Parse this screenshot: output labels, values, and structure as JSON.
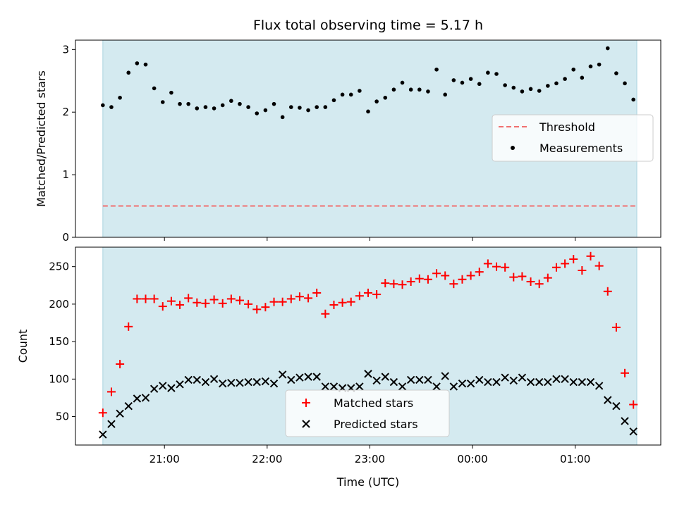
{
  "chart_data": [
    {
      "type": "scatter",
      "title": "Flux total observing time = 5.17 h",
      "xlabel": "",
      "ylabel": "Matched/Predicted stars",
      "ylim": [
        0,
        3.15
      ],
      "yticks": [
        0,
        1,
        2,
        3
      ],
      "shaded_region": {
        "x_start": "20:24",
        "x_end": "01:36",
        "color": "#d4eaf0"
      },
      "threshold": {
        "name": "Threshold",
        "value": 0.5,
        "color": "#f07070",
        "style": "dashed"
      },
      "series": [
        {
          "name": "Measurements",
          "marker": "dot",
          "color": "#000000",
          "points": [
            [
              "20:24",
              2.11
            ],
            [
              "20:29",
              2.08
            ],
            [
              "20:34",
              2.23
            ],
            [
              "20:39",
              2.63
            ],
            [
              "20:44",
              2.78
            ],
            [
              "20:49",
              2.76
            ],
            [
              "20:54",
              2.38
            ],
            [
              "20:59",
              2.16
            ],
            [
              "21:04",
              2.31
            ],
            [
              "21:09",
              2.13
            ],
            [
              "21:14",
              2.13
            ],
            [
              "21:19",
              2.06
            ],
            [
              "21:24",
              2.08
            ],
            [
              "21:29",
              2.06
            ],
            [
              "21:34",
              2.11
            ],
            [
              "21:39",
              2.18
            ],
            [
              "21:44",
              2.13
            ],
            [
              "21:49",
              2.08
            ],
            [
              "21:54",
              1.98
            ],
            [
              "21:59",
              2.03
            ],
            [
              "22:04",
              2.13
            ],
            [
              "22:09",
              1.92
            ],
            [
              "22:14",
              2.08
            ],
            [
              "22:19",
              2.07
            ],
            [
              "22:24",
              2.03
            ],
            [
              "22:29",
              2.08
            ],
            [
              "22:34",
              2.08
            ],
            [
              "22:39",
              2.19
            ],
            [
              "22:44",
              2.28
            ],
            [
              "22:49",
              2.28
            ],
            [
              "22:54",
              2.34
            ],
            [
              "22:59",
              2.01
            ],
            [
              "23:04",
              2.17
            ],
            [
              "23:09",
              2.23
            ],
            [
              "23:14",
              2.36
            ],
            [
              "23:19",
              2.47
            ],
            [
              "23:24",
              2.36
            ],
            [
              "23:29",
              2.36
            ],
            [
              "23:34",
              2.33
            ],
            [
              "23:39",
              2.68
            ],
            [
              "23:44",
              2.28
            ],
            [
              "23:49",
              2.51
            ],
            [
              "23:54",
              2.47
            ],
            [
              "23:59",
              2.53
            ],
            [
              "00:04",
              2.45
            ],
            [
              "00:09",
              2.63
            ],
            [
              "00:14",
              2.61
            ],
            [
              "00:19",
              2.43
            ],
            [
              "00:24",
              2.39
            ],
            [
              "00:29",
              2.33
            ],
            [
              "00:34",
              2.37
            ],
            [
              "00:39",
              2.34
            ],
            [
              "00:44",
              2.42
            ],
            [
              "00:49",
              2.46
            ],
            [
              "00:54",
              2.53
            ],
            [
              "00:59",
              2.68
            ],
            [
              "01:04",
              2.55
            ],
            [
              "01:09",
              2.73
            ],
            [
              "01:14",
              2.76
            ],
            [
              "01:19",
              3.02
            ],
            [
              "01:24",
              2.62
            ],
            [
              "01:29",
              2.46
            ],
            [
              "01:34",
              2.2
            ]
          ]
        }
      ],
      "legend_position": "center-right"
    },
    {
      "type": "scatter",
      "title": "",
      "xlabel": "Time (UTC)",
      "ylabel": "Count",
      "ylim": [
        12,
        276
      ],
      "yticks": [
        50,
        100,
        150,
        200,
        250
      ],
      "xlim": [
        "20:08",
        "01:50"
      ],
      "xticks": [
        "21:00",
        "22:00",
        "23:00",
        "00:00",
        "01:00"
      ],
      "shaded_region": {
        "x_start": "20:24",
        "x_end": "01:36",
        "color": "#d4eaf0"
      },
      "series": [
        {
          "name": "Matched stars",
          "marker": "plus",
          "color": "#ff0000",
          "points": [
            [
              "20:24",
              55
            ],
            [
              "20:29",
              83
            ],
            [
              "20:34",
              120
            ],
            [
              "20:39",
              170
            ],
            [
              "20:44",
              207
            ],
            [
              "20:49",
              207
            ],
            [
              "20:54",
              207
            ],
            [
              "20:59",
              197
            ],
            [
              "21:04",
              204
            ],
            [
              "21:09",
              199
            ],
            [
              "21:14",
              208
            ],
            [
              "21:19",
              202
            ],
            [
              "21:24",
              201
            ],
            [
              "21:29",
              206
            ],
            [
              "21:34",
              201
            ],
            [
              "21:39",
              207
            ],
            [
              "21:44",
              205
            ],
            [
              "21:49",
              200
            ],
            [
              "21:54",
              193
            ],
            [
              "21:59",
              196
            ],
            [
              "22:04",
              203
            ],
            [
              "22:09",
              203
            ],
            [
              "22:14",
              207
            ],
            [
              "22:19",
              210
            ],
            [
              "22:24",
              208
            ],
            [
              "22:29",
              215
            ],
            [
              "22:34",
              187
            ],
            [
              "22:39",
              199
            ],
            [
              "22:44",
              202
            ],
            [
              "22:49",
              203
            ],
            [
              "22:54",
              211
            ],
            [
              "22:59",
              215
            ],
            [
              "23:04",
              213
            ],
            [
              "23:09",
              228
            ],
            [
              "23:14",
              227
            ],
            [
              "23:19",
              226
            ],
            [
              "23:24",
              230
            ],
            [
              "23:29",
              234
            ],
            [
              "23:34",
              233
            ],
            [
              "23:39",
              241
            ],
            [
              "23:44",
              238
            ],
            [
              "23:49",
              227
            ],
            [
              "23:54",
              233
            ],
            [
              "23:59",
              238
            ],
            [
              "00:04",
              243
            ],
            [
              "00:09",
              254
            ],
            [
              "00:14",
              250
            ],
            [
              "00:19",
              249
            ],
            [
              "00:24",
              236
            ],
            [
              "00:29",
              237
            ],
            [
              "00:34",
              230
            ],
            [
              "00:39",
              227
            ],
            [
              "00:44",
              235
            ],
            [
              "00:49",
              249
            ],
            [
              "00:54",
              254
            ],
            [
              "00:59",
              260
            ],
            [
              "01:04",
              245
            ],
            [
              "01:09",
              264
            ],
            [
              "01:14",
              251
            ],
            [
              "01:19",
              217
            ],
            [
              "01:24",
              169
            ],
            [
              "01:29",
              108
            ],
            [
              "01:34",
              66
            ]
          ]
        },
        {
          "name": "Predicted stars",
          "marker": "x",
          "color": "#000000",
          "points": [
            [
              "20:24",
              26
            ],
            [
              "20:29",
              40
            ],
            [
              "20:34",
              54
            ],
            [
              "20:39",
              64
            ],
            [
              "20:44",
              74
            ],
            [
              "20:49",
              75
            ],
            [
              "20:54",
              87
            ],
            [
              "20:59",
              91
            ],
            [
              "21:04",
              88
            ],
            [
              "21:09",
              93
            ],
            [
              "21:14",
              99
            ],
            [
              "21:19",
              99
            ],
            [
              "21:24",
              96
            ],
            [
              "21:29",
              100
            ],
            [
              "21:34",
              94
            ],
            [
              "21:39",
              95
            ],
            [
              "21:44",
              95
            ],
            [
              "21:49",
              96
            ],
            [
              "21:54",
              96
            ],
            [
              "21:59",
              97
            ],
            [
              "22:04",
              94
            ],
            [
              "22:09",
              106
            ],
            [
              "22:14",
              99
            ],
            [
              "22:19",
              102
            ],
            [
              "22:24",
              103
            ],
            [
              "22:29",
              103
            ],
            [
              "22:34",
              90
            ],
            [
              "22:39",
              90
            ],
            [
              "22:44",
              88
            ],
            [
              "22:49",
              88
            ],
            [
              "22:54",
              90
            ],
            [
              "22:59",
              107
            ],
            [
              "23:04",
              98
            ],
            [
              "23:09",
              103
            ],
            [
              "23:14",
              96
            ],
            [
              "23:19",
              90
            ],
            [
              "23:24",
              99
            ],
            [
              "23:29",
              99
            ],
            [
              "23:34",
              99
            ],
            [
              "23:39",
              90
            ],
            [
              "23:44",
              104
            ],
            [
              "23:49",
              90
            ],
            [
              "23:54",
              94
            ],
            [
              "23:59",
              94
            ],
            [
              "00:04",
              99
            ],
            [
              "00:09",
              96
            ],
            [
              "00:14",
              96
            ],
            [
              "00:19",
              102
            ],
            [
              "00:24",
              98
            ],
            [
              "00:29",
              102
            ],
            [
              "00:34",
              96
            ],
            [
              "00:39",
              96
            ],
            [
              "00:44",
              96
            ],
            [
              "00:49",
              100
            ],
            [
              "00:54",
              100
            ],
            [
              "00:59",
              96
            ],
            [
              "01:04",
              96
            ],
            [
              "01:09",
              96
            ],
            [
              "01:14",
              91
            ],
            [
              "01:19",
              72
            ],
            [
              "01:24",
              64
            ],
            [
              "01:29",
              44
            ],
            [
              "01:34",
              30
            ]
          ]
        }
      ],
      "legend_position": "lower-center"
    }
  ]
}
